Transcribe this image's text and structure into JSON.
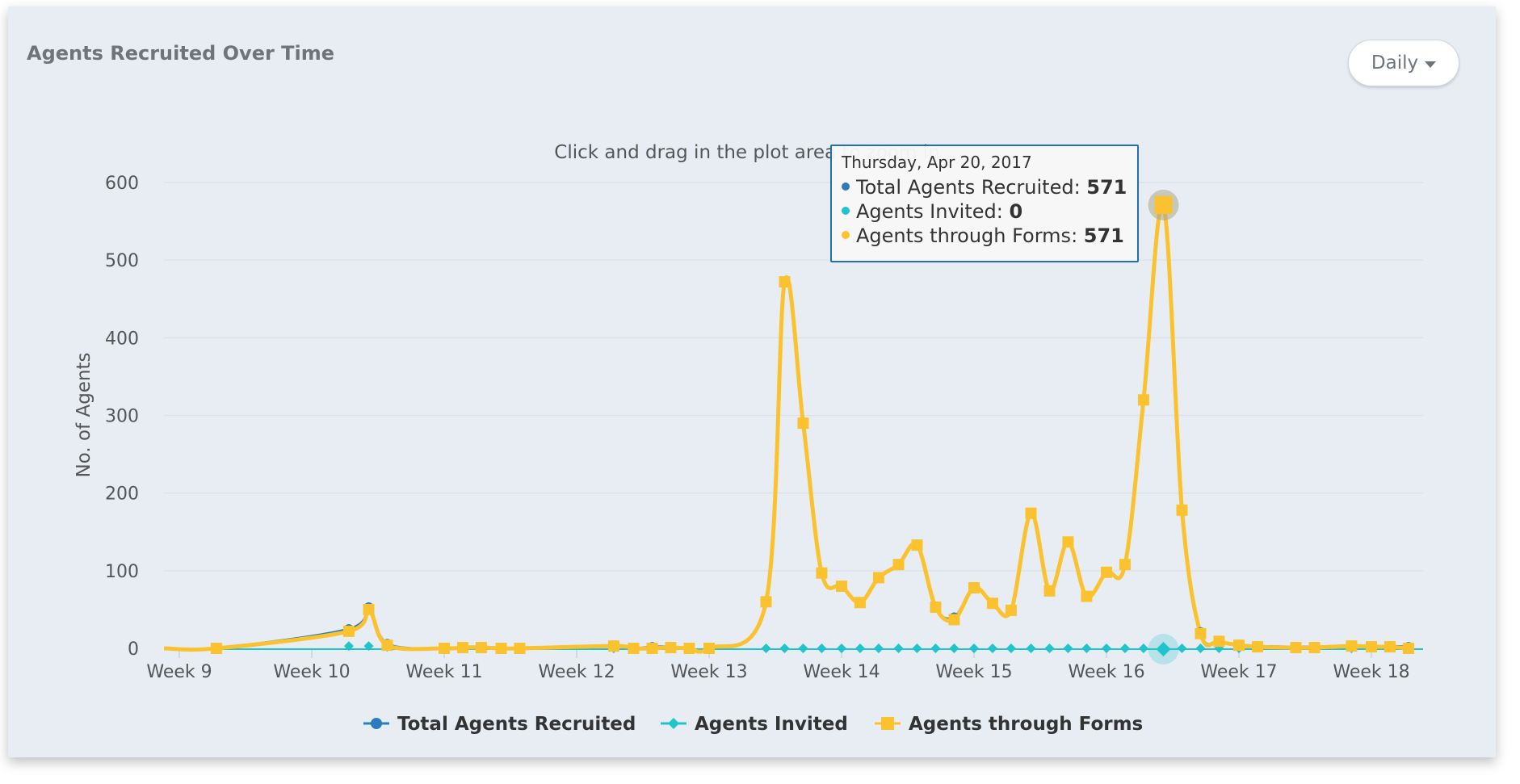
{
  "header": {
    "title": "Agents Recruited Over Time"
  },
  "controls": {
    "interval_label": "Daily",
    "interval_icon": "caret-down-icon"
  },
  "chart_data": {
    "type": "line",
    "subtitle": "Click and drag in the plot area to zoom in",
    "ylabel": "No. of Agents",
    "ylim": [
      0,
      600
    ],
    "yticks": [
      "0",
      "100",
      "200",
      "300",
      "400",
      "500",
      "600"
    ],
    "xlim": [
      -0.2,
      9.3
    ],
    "xticks": [
      {
        "x": 0,
        "label": "Week 9"
      },
      {
        "x": 1,
        "label": "Week 10"
      },
      {
        "x": 2,
        "label": "Week 11"
      },
      {
        "x": 3,
        "label": "Week 12"
      },
      {
        "x": 4,
        "label": "Week 13"
      },
      {
        "x": 5,
        "label": "Week 14"
      },
      {
        "x": 6,
        "label": "Week 15"
      },
      {
        "x": 7,
        "label": "Week 16"
      },
      {
        "x": 8,
        "label": "Week 17"
      },
      {
        "x": 9,
        "label": "Week 18"
      }
    ],
    "grid": true,
    "legend_position": "bottom",
    "series": [
      {
        "name": "Total Agents Recruited",
        "color": "#2b7bbd",
        "marker": "circle",
        "points": [
          [
            0.28,
            0
          ],
          [
            1.28,
            25
          ],
          [
            1.43,
            53
          ],
          [
            1.57,
            6
          ],
          [
            2.0,
            0
          ],
          [
            2.14,
            2
          ],
          [
            2.28,
            2
          ],
          [
            2.43,
            0
          ],
          [
            2.57,
            0
          ],
          [
            3.28,
            3
          ],
          [
            3.43,
            0
          ],
          [
            3.57,
            2
          ],
          [
            3.71,
            2
          ],
          [
            3.85,
            0
          ],
          [
            4.0,
            0
          ],
          [
            4.43,
            60
          ],
          [
            4.57,
            472
          ],
          [
            4.71,
            290
          ],
          [
            4.85,
            97
          ],
          [
            5.0,
            80
          ],
          [
            5.14,
            59
          ],
          [
            5.28,
            91
          ],
          [
            5.43,
            108
          ],
          [
            5.57,
            133
          ],
          [
            5.71,
            53
          ],
          [
            5.85,
            40
          ],
          [
            6.0,
            78
          ],
          [
            6.14,
            58
          ],
          [
            6.28,
            49
          ],
          [
            6.43,
            174
          ],
          [
            6.57,
            74
          ],
          [
            6.71,
            137
          ],
          [
            6.85,
            67
          ],
          [
            7.0,
            98
          ],
          [
            7.14,
            108
          ],
          [
            7.28,
            320
          ],
          [
            7.43,
            571
          ],
          [
            7.57,
            178
          ],
          [
            7.71,
            21
          ],
          [
            7.85,
            9
          ],
          [
            8.0,
            5
          ],
          [
            8.14,
            3
          ],
          [
            8.43,
            2
          ],
          [
            8.57,
            2
          ],
          [
            8.85,
            3
          ],
          [
            9.0,
            3
          ],
          [
            9.14,
            3
          ],
          [
            9.28,
            2
          ]
        ]
      },
      {
        "name": "Agents Invited",
        "color": "#22c4cc",
        "marker": "diamond",
        "points": [
          [
            1.28,
            3
          ],
          [
            1.43,
            3
          ],
          [
            1.57,
            2
          ],
          [
            3.28,
            0
          ],
          [
            4.43,
            0
          ],
          [
            4.57,
            0
          ],
          [
            4.71,
            0
          ],
          [
            4.85,
            0
          ],
          [
            5.0,
            0
          ],
          [
            5.14,
            0
          ],
          [
            5.28,
            0
          ],
          [
            5.43,
            0
          ],
          [
            5.57,
            0
          ],
          [
            5.71,
            0
          ],
          [
            5.85,
            0
          ],
          [
            6.0,
            0
          ],
          [
            6.14,
            0
          ],
          [
            6.28,
            0
          ],
          [
            6.43,
            0
          ],
          [
            6.57,
            0
          ],
          [
            6.71,
            0
          ],
          [
            6.85,
            0
          ],
          [
            7.0,
            0
          ],
          [
            7.14,
            0
          ],
          [
            7.28,
            0
          ],
          [
            7.43,
            0
          ],
          [
            7.57,
            0
          ],
          [
            7.71,
            0
          ],
          [
            7.85,
            0
          ],
          [
            8.0,
            0
          ],
          [
            8.85,
            0
          ]
        ]
      },
      {
        "name": "Agents through Forms",
        "color": "#fbc230",
        "marker": "square",
        "points": [
          [
            0.28,
            0
          ],
          [
            1.28,
            22
          ],
          [
            1.43,
            50
          ],
          [
            1.57,
            4
          ],
          [
            2.0,
            0
          ],
          [
            2.14,
            1
          ],
          [
            2.28,
            1
          ],
          [
            2.43,
            0
          ],
          [
            2.57,
            0
          ],
          [
            3.28,
            3
          ],
          [
            3.43,
            0
          ],
          [
            3.57,
            0
          ],
          [
            3.71,
            1
          ],
          [
            3.85,
            0
          ],
          [
            4.0,
            0
          ],
          [
            4.43,
            60
          ],
          [
            4.57,
            472
          ],
          [
            4.71,
            290
          ],
          [
            4.85,
            97
          ],
          [
            5.0,
            80
          ],
          [
            5.14,
            59
          ],
          [
            5.28,
            91
          ],
          [
            5.43,
            108
          ],
          [
            5.57,
            133
          ],
          [
            5.71,
            53
          ],
          [
            5.85,
            37
          ],
          [
            6.0,
            78
          ],
          [
            6.14,
            58
          ],
          [
            6.28,
            49
          ],
          [
            6.43,
            174
          ],
          [
            6.57,
            74
          ],
          [
            6.71,
            137
          ],
          [
            6.85,
            67
          ],
          [
            7.0,
            98
          ],
          [
            7.14,
            108
          ],
          [
            7.28,
            320
          ],
          [
            7.43,
            571
          ],
          [
            7.57,
            178
          ],
          [
            7.71,
            19
          ],
          [
            7.85,
            9
          ],
          [
            8.0,
            4
          ],
          [
            8.14,
            2
          ],
          [
            8.43,
            1
          ],
          [
            8.57,
            1
          ],
          [
            8.85,
            3
          ],
          [
            9.0,
            2
          ],
          [
            9.14,
            2
          ],
          [
            9.28,
            0
          ]
        ]
      }
    ],
    "tooltip": {
      "date": "Thursday, Apr 20, 2017",
      "rows": [
        {
          "label": "Total Agents Recruited: ",
          "value": "571",
          "color": "#2b7bbd"
        },
        {
          "label": "Agents Invited: ",
          "value": "0",
          "color": "#22c4cc"
        },
        {
          "label": "Agents through Forms: ",
          "value": "571",
          "color": "#fbc230"
        }
      ]
    }
  }
}
